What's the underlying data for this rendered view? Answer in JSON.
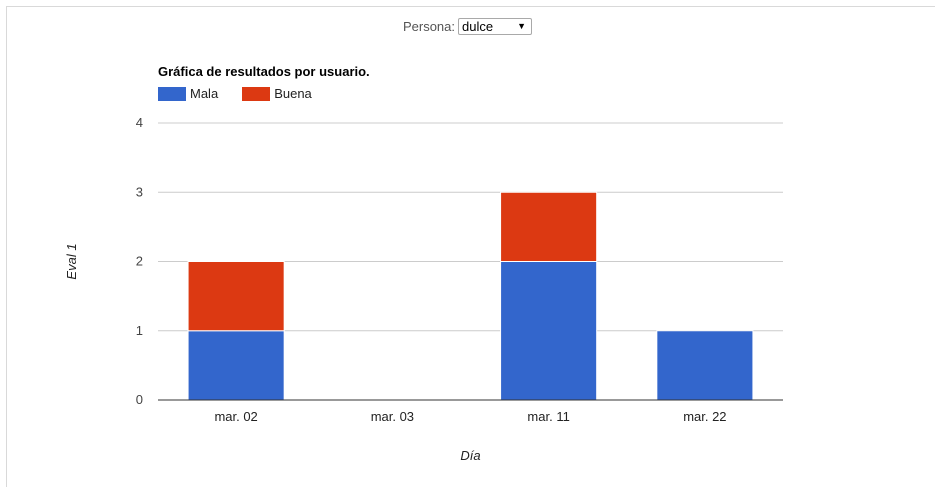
{
  "filter": {
    "label": "Persona:",
    "selected": "dulce"
  },
  "chart_data": {
    "type": "bar",
    "stacked": true,
    "title": "Gráfica de resultados por usuario.",
    "xlabel": "Día",
    "ylabel": "Eval 1",
    "categories": [
      "mar. 02",
      "mar. 03",
      "mar. 11",
      "mar. 22"
    ],
    "series": [
      {
        "name": "Mala",
        "color": "#3366cc",
        "values": [
          1,
          0,
          2,
          1
        ]
      },
      {
        "name": "Buena",
        "color": "#dc3912",
        "values": [
          1,
          0,
          1,
          0
        ]
      }
    ],
    "ylim": [
      0,
      4
    ],
    "yticks": [
      "0",
      "1",
      "2",
      "3",
      "4"
    ],
    "grid": true,
    "legend": "top-left"
  }
}
